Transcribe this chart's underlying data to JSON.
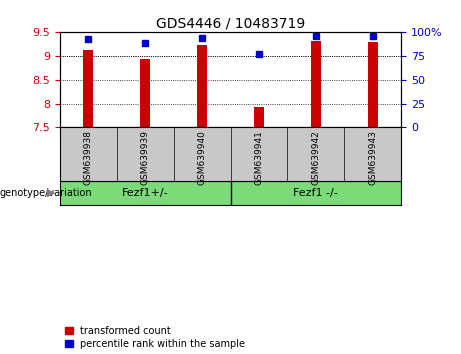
{
  "title": "GDS4446 / 10483719",
  "samples": [
    "GSM639938",
    "GSM639939",
    "GSM639940",
    "GSM639941",
    "GSM639942",
    "GSM639943"
  ],
  "transformed_counts": [
    9.12,
    8.93,
    9.22,
    7.93,
    9.3,
    9.28
  ],
  "percentile_ranks": [
    93,
    88,
    94,
    77,
    96,
    96
  ],
  "ylim_left": [
    7.5,
    9.5
  ],
  "ylim_right": [
    0,
    100
  ],
  "yticks_left": [
    7.5,
    8.0,
    8.5,
    9.0,
    9.5
  ],
  "yticks_right": [
    0,
    25,
    50,
    75,
    100
  ],
  "ytick_labels_left": [
    "7.5",
    "8",
    "8.5",
    "9",
    "9.5"
  ],
  "ytick_labels_right": [
    "0",
    "25",
    "50",
    "75",
    "100%"
  ],
  "group1_label": "Fezf1+/-",
  "group2_label": "Fezf1 -/-",
  "group1_indices": [
    0,
    1,
    2
  ],
  "group2_indices": [
    3,
    4,
    5
  ],
  "bar_color": "#cc0000",
  "marker_color": "#0000cc",
  "bg_color": "#ffffff",
  "plot_bg": "#ffffff",
  "grid_color": "#000000",
  "label_bg": "#c8c8c8",
  "group_bg": "#7adb78",
  "legend_item1": "transformed count",
  "legend_item2": "percentile rank within the sample",
  "genotype_label": "genotype/variation",
  "bar_width": 0.18,
  "title_fontsize": 10,
  "tick_fontsize": 8,
  "sample_fontsize": 6.5,
  "group_fontsize": 8,
  "legend_fontsize": 7
}
